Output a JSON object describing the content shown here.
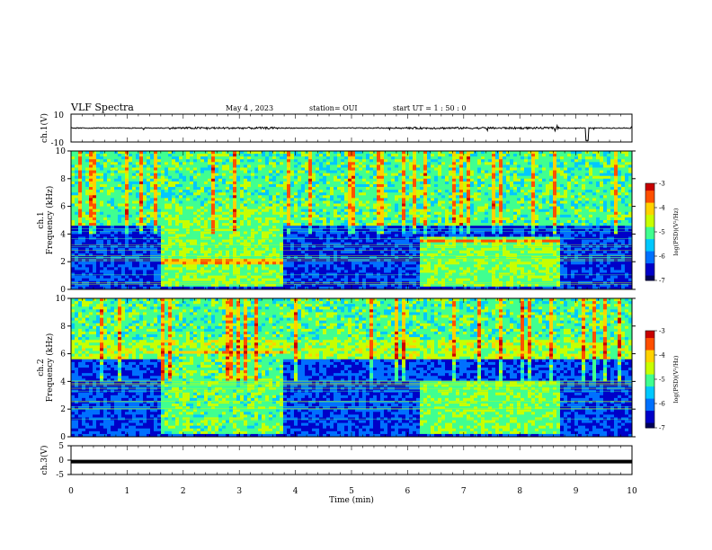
{
  "header": {
    "title": "VLF Spectra",
    "date": "May 4 , 2023",
    "station": "station= OUI",
    "start": "start UT = 1 : 50 : 0"
  },
  "colors": {
    "colormap": [
      "#00005a",
      "#0000c8",
      "#0070ff",
      "#00c8ff",
      "#40ff90",
      "#c8ff00",
      "#ffd200",
      "#ff5000",
      "#c80000"
    ],
    "trace": "#000000"
  },
  "chart_data": [
    {
      "type": "line",
      "panel": "ch1-waveform",
      "ylabel": "ch.1(V)",
      "ylim": [
        -10,
        10
      ],
      "yticks": [
        "10",
        "-10"
      ],
      "xlim": [
        0,
        10
      ],
      "description": "waveform amplitude around 0 V, bursts near 1.7-3.7 min and 6-8.7 min, spike near 9.2 min",
      "series": [
        {
          "values": [
            0,
            0.3,
            -0.2,
            2.5,
            -3,
            1.5,
            0.4,
            -0.6,
            2,
            -1.5,
            0.3,
            -4
          ]
        }
      ]
    },
    {
      "type": "heatmap",
      "panel": "ch1-spectrogram",
      "ylabel": "ch.1 Frequency (kHz)",
      "ylim": [
        0,
        10
      ],
      "yticks": [
        "0",
        "2",
        "4",
        "6",
        "8",
        "10"
      ],
      "xlim": [
        0,
        10
      ],
      "colorbar": {
        "label": "log(PSD)(V²/Hz)",
        "range": [
          -7,
          -3
        ],
        "ticks": [
          "-3",
          "-4",
          "-5",
          "-6",
          "-7"
        ]
      },
      "features": [
        {
          "name": "background",
          "freq_kHz": [
            4.5,
            10
          ],
          "level": -5
        },
        {
          "name": "low band",
          "freq_kHz": [
            0,
            4.5
          ],
          "level": -6.3
        },
        {
          "name": "transmitter block",
          "time_min": [
            1.6,
            3.8
          ],
          "freq_kHz": [
            0.3,
            6
          ],
          "level": -4.8
        },
        {
          "name": "transmitter block",
          "time_min": [
            6.2,
            8.7
          ],
          "freq_kHz": [
            0.3,
            3.8
          ],
          "level": -4.8
        },
        {
          "name": "hot line",
          "time_min": [
            6.2,
            8.7
          ],
          "freq_kHz": 3.5,
          "level": -3.7
        },
        {
          "name": "hot line",
          "time_min": [
            1.6,
            3.8
          ],
          "freq_kHz": 2.0,
          "level": -3.8
        }
      ]
    },
    {
      "type": "heatmap",
      "panel": "ch2-spectrogram",
      "ylabel": "ch.2 Frequency (kHz)",
      "ylim": [
        0,
        10
      ],
      "yticks": [
        "0",
        "2",
        "4",
        "6",
        "8",
        "10"
      ],
      "xlim": [
        0,
        10
      ],
      "colorbar": {
        "label": "log(PSD)(V²/Hz)",
        "range": [
          -7,
          -3
        ],
        "ticks": [
          "-3",
          "-4",
          "-5",
          "-6",
          "-7"
        ]
      },
      "features": [
        {
          "name": "background",
          "freq_kHz": [
            5.5,
            10
          ],
          "level": -5
        },
        {
          "name": "hiss band",
          "freq_kHz": [
            5.6,
            7
          ],
          "level": -4.6
        },
        {
          "name": "low band",
          "freq_kHz": [
            0,
            5.5
          ],
          "level": -6.2
        },
        {
          "name": "transmitter block",
          "time_min": [
            1.6,
            3.8
          ],
          "freq_kHz": [
            0.3,
            6.3
          ],
          "level": -4.9
        },
        {
          "name": "transmitter block",
          "time_min": [
            6.2,
            8.7
          ],
          "freq_kHz": [
            0.3,
            4
          ],
          "level": -4.8
        },
        {
          "name": "hot line",
          "time_min": [
            1.6,
            3.8
          ],
          "freq_kHz": 6.1,
          "level": -3.9
        }
      ]
    },
    {
      "type": "line",
      "panel": "ch3-waveform",
      "ylabel": "ch.3(V)",
      "ylim": [
        -5,
        5
      ],
      "yticks": [
        "5",
        "0",
        "-5"
      ],
      "xlim": [
        0,
        10
      ],
      "series": [
        {
          "values": [
            -0.5,
            -0.5
          ]
        }
      ]
    }
  ],
  "xaxis": {
    "label": "Time (min)",
    "ticks": [
      "0",
      "1",
      "2",
      "3",
      "4",
      "5",
      "6",
      "7",
      "8",
      "9",
      "10"
    ]
  }
}
